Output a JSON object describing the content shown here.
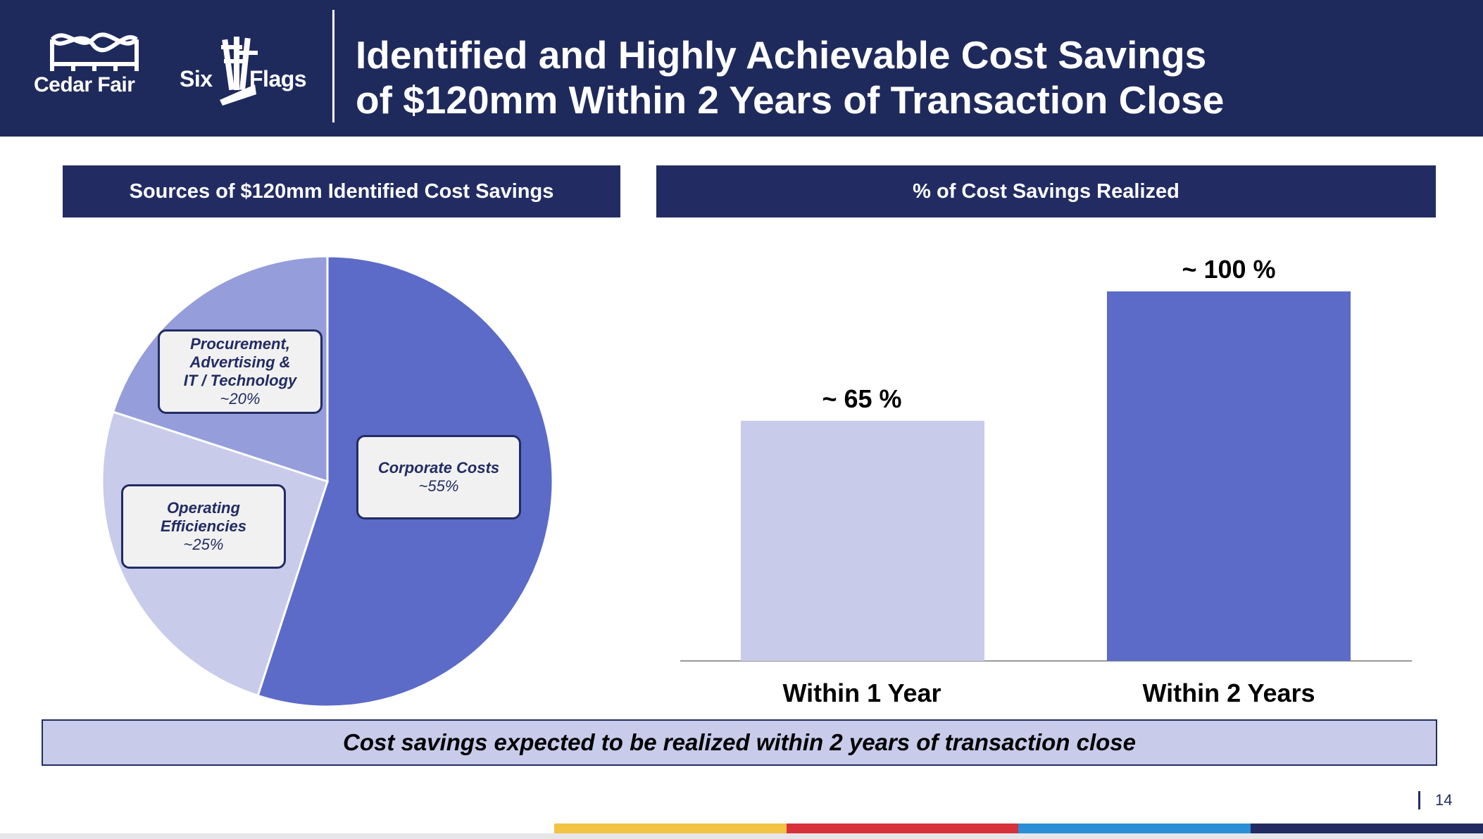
{
  "header": {
    "title_line1": "Identified and Highly Achievable Cost Savings",
    "title_line2": "of $120mm Within 2 Years of Transaction Close",
    "logo_left_text": "Cedar Fair",
    "logo_right_text_a": "Six",
    "logo_right_text_b": "Flags"
  },
  "panels": {
    "left_title": "Sources of $120mm Identified Cost Savings",
    "right_title": "% of Cost Savings Realized"
  },
  "chart_data": [
    {
      "type": "pie",
      "title": "Sources of $120mm Identified Cost Savings",
      "slices": [
        {
          "name": "Corporate Costs",
          "value_label": "~55%",
          "value": 55,
          "color": "#5c6bc8"
        },
        {
          "name": "Operating\nEfficiencies",
          "value_label": "~25%",
          "value": 25,
          "color": "#c8cbea"
        },
        {
          "name": "Procurement,\nAdvertising &\nIT / Technology",
          "value_label": "~20%",
          "value": 20,
          "color": "#959edb"
        }
      ]
    },
    {
      "type": "bar",
      "title": "% of Cost Savings Realized",
      "categories": [
        "Within 1 Year",
        "Within 2 Years"
      ],
      "values": [
        65,
        100
      ],
      "value_labels": [
        "~ 65 %",
        "~ 100 %"
      ],
      "colors": [
        "#c8cbea",
        "#5c6bc8"
      ],
      "ylim": [
        0,
        100
      ]
    }
  ],
  "footer": {
    "note": "Cost savings expected to be realized within 2 years of transaction close",
    "page_number": "14"
  },
  "colors": {
    "navy": "#1f2a5c",
    "stripe_yellow": "#f2c245",
    "stripe_red": "#d7323a",
    "stripe_blue": "#2a8fd6",
    "stripe_navy": "#222c63"
  }
}
